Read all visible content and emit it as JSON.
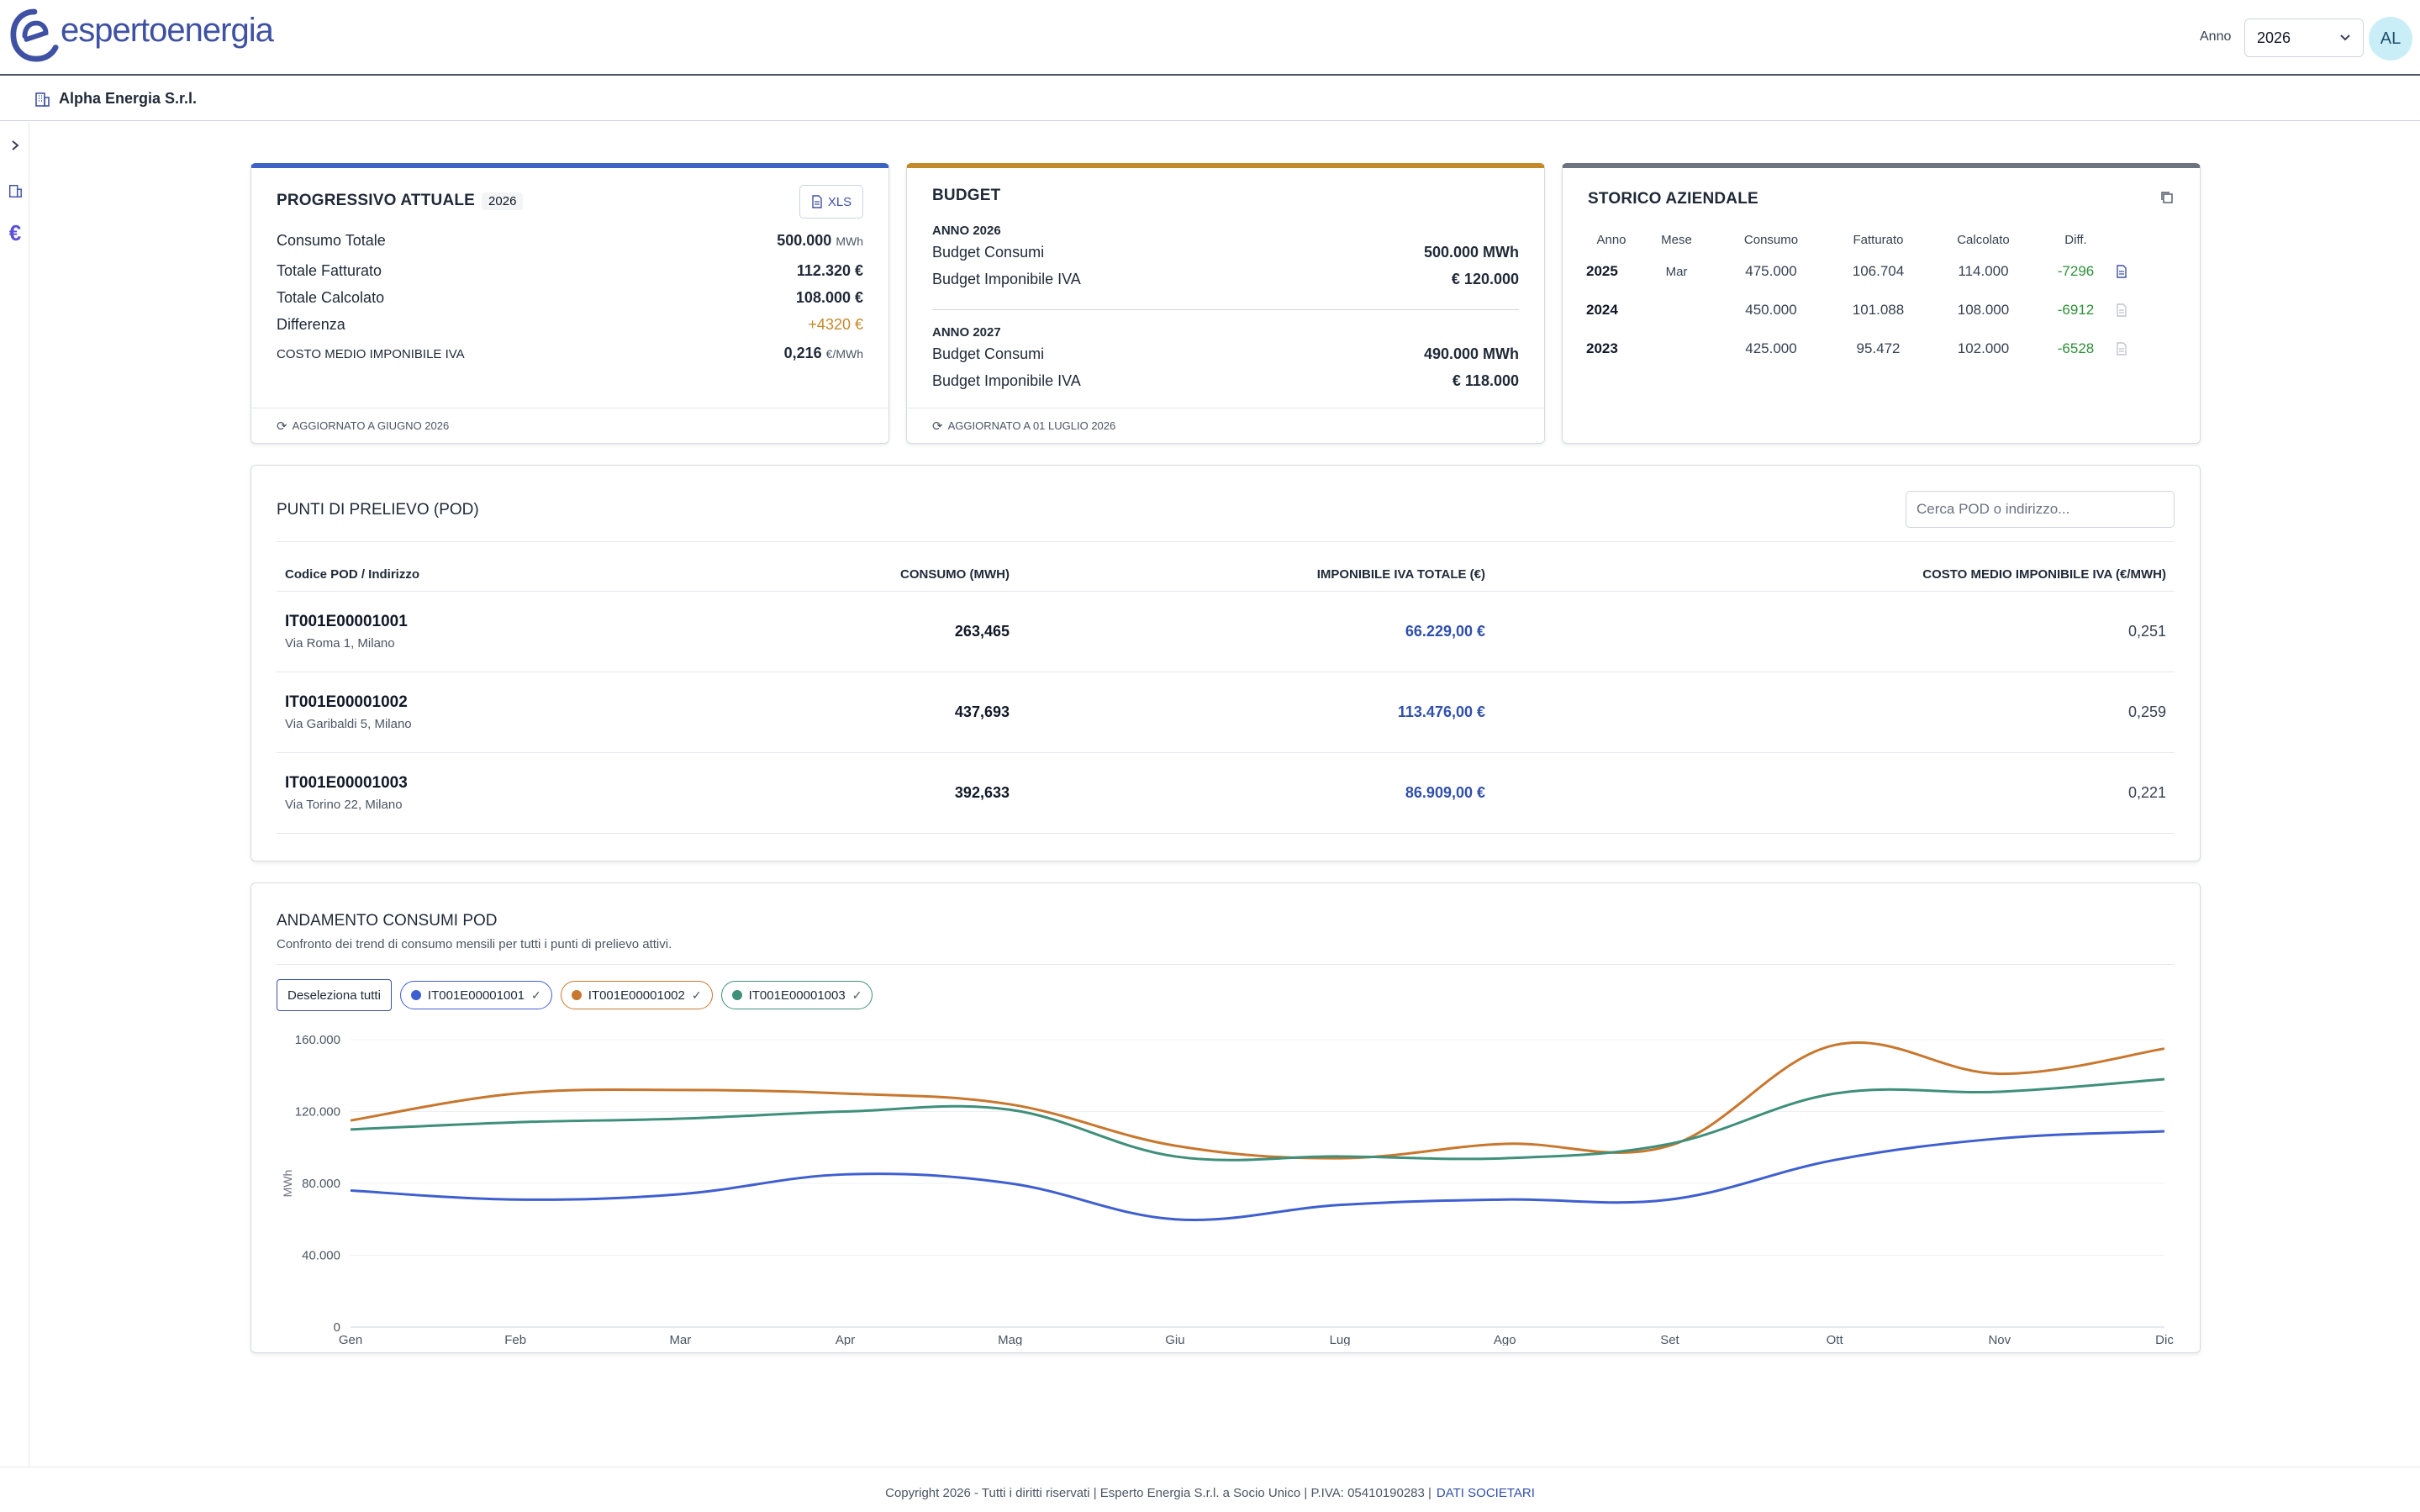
{
  "header": {
    "logo_text": "espertoenergia",
    "anno_label": "Anno",
    "anno_value": "2026",
    "avatar": "AL",
    "brand_color": "#3f51a3"
  },
  "company": {
    "name": "Alpha Energia S.r.l."
  },
  "rail": {
    "icons": [
      "chevron-right-icon",
      "building-icon",
      "euro-icon"
    ]
  },
  "progressivo": {
    "title": "PROGRESSIVO ATTUALE",
    "year_badge": "2026",
    "xls_label": "XLS",
    "consumo_label": "Consumo Totale",
    "consumo_value": "500.000",
    "consumo_unit": "MWh",
    "fatturato_label": "Totale Fatturato",
    "fatturato_value": "112.320 €",
    "calcolato_label": "Totale Calcolato",
    "calcolato_value": "108.000 €",
    "differenza_label": "Differenza",
    "differenza_value": "+4320 €",
    "costo_label": "COSTO MEDIO IMPONIBILE IVA",
    "costo_value": "0,216",
    "costo_unit": "€/MWh",
    "updated": "AGGIORNATO A GIUGNO 2026"
  },
  "budget": {
    "title": "BUDGET",
    "y1_label": "ANNO 2026",
    "y1_consumi_label": "Budget Consumi",
    "y1_consumi_value": "500.000 MWh",
    "y1_imp_label": "Budget Imponibile IVA",
    "y1_imp_value": "€ 120.000",
    "y2_label": "ANNO 2027",
    "y2_consumi_label": "Budget Consumi",
    "y2_consumi_value": "490.000 MWh",
    "y2_imp_label": "Budget Imponibile IVA",
    "y2_imp_value": "€ 118.000",
    "updated": "AGGIORNATO A 01 LUGLIO 2026"
  },
  "storico": {
    "title": "STORICO AZIENDALE",
    "headers": [
      "Anno",
      "Mese",
      "Consumo",
      "Fatturato",
      "Calcolato",
      "Diff."
    ],
    "rows": [
      {
        "anno": "2025",
        "mese": "Mar",
        "consumo": "475.000",
        "fatturato": "106.704",
        "calcolato": "114.000",
        "diff": "-7296"
      },
      {
        "anno": "2024",
        "mese": "",
        "consumo": "450.000",
        "fatturato": "101.088",
        "calcolato": "108.000",
        "diff": "-6912"
      },
      {
        "anno": "2023",
        "mese": "",
        "consumo": "425.000",
        "fatturato": "95.472",
        "calcolato": "102.000",
        "diff": "-6528"
      }
    ]
  },
  "pod": {
    "title": "PUNTI DI PRELIEVO (POD)",
    "search_placeholder": "Cerca POD o indirizzo...",
    "headers": [
      "Codice POD / Indirizzo",
      "CONSUMO (MWH)",
      "IMPONIBILE IVA TOTALE (€)",
      "COSTO MEDIO IMPONIBILE IVA (€/MWH)"
    ],
    "rows": [
      {
        "code": "IT001E00001001",
        "address": "Via Roma 1, Milano",
        "consumo": "263,465",
        "imponibile": "66.229,00 €",
        "costo": "0,251"
      },
      {
        "code": "IT001E00001002",
        "address": "Via Garibaldi 5, Milano",
        "consumo": "437,693",
        "imponibile": "113.476,00 €",
        "costo": "0,259"
      },
      {
        "code": "IT001E00001003",
        "address": "Via Torino 22, Milano",
        "consumo": "392,633",
        "imponibile": "86.909,00 €",
        "costo": "0,221"
      }
    ]
  },
  "andamento": {
    "title": "ANDAMENTO CONSUMI POD",
    "subtitle": "Confronto dei trend di consumo mensili per tutti i punti di prelievo attivi.",
    "deselect_label": "Deseleziona tutti",
    "series_labels": [
      "IT001E00001001",
      "IT001E00001002",
      "IT001E00001003"
    ]
  },
  "chart_data": {
    "type": "line",
    "categories": [
      "Gen",
      "Feb",
      "Mar",
      "Apr",
      "Mag",
      "Giu",
      "Lug",
      "Ago",
      "Set",
      "Ott",
      "Nov",
      "Dic"
    ],
    "ylabel": "MWh",
    "ylim": [
      0,
      160000
    ],
    "yticks": [
      "0",
      "40.000",
      "80.000",
      "120.000",
      "160.000"
    ],
    "yticks_values": [
      0,
      40000,
      80000,
      120000,
      160000
    ],
    "grid": true,
    "series": [
      {
        "name": "IT001E00001001",
        "color": "#3f5fd0",
        "values": [
          76000,
          71000,
          74000,
          85000,
          80000,
          60000,
          68000,
          71000,
          71000,
          93000,
          105000,
          109000
        ]
      },
      {
        "name": "IT001E00001002",
        "color": "#c8772e",
        "values": [
          115000,
          130000,
          132000,
          130000,
          124000,
          101000,
          94000,
          102000,
          101000,
          157000,
          141000,
          155000
        ]
      },
      {
        "name": "IT001E00001003",
        "color": "#3f8f7a",
        "values": [
          110000,
          114000,
          116000,
          120000,
          121000,
          95000,
          95000,
          94000,
          102000,
          130000,
          131000,
          138000
        ]
      }
    ]
  },
  "footer": {
    "text": "Copyright 2026 - Tutti i diritti riservati | Esperto Energia S.r.l. a Socio Unico | P.IVA: 05410190283 |",
    "link": "DATI SOCIETARI"
  }
}
